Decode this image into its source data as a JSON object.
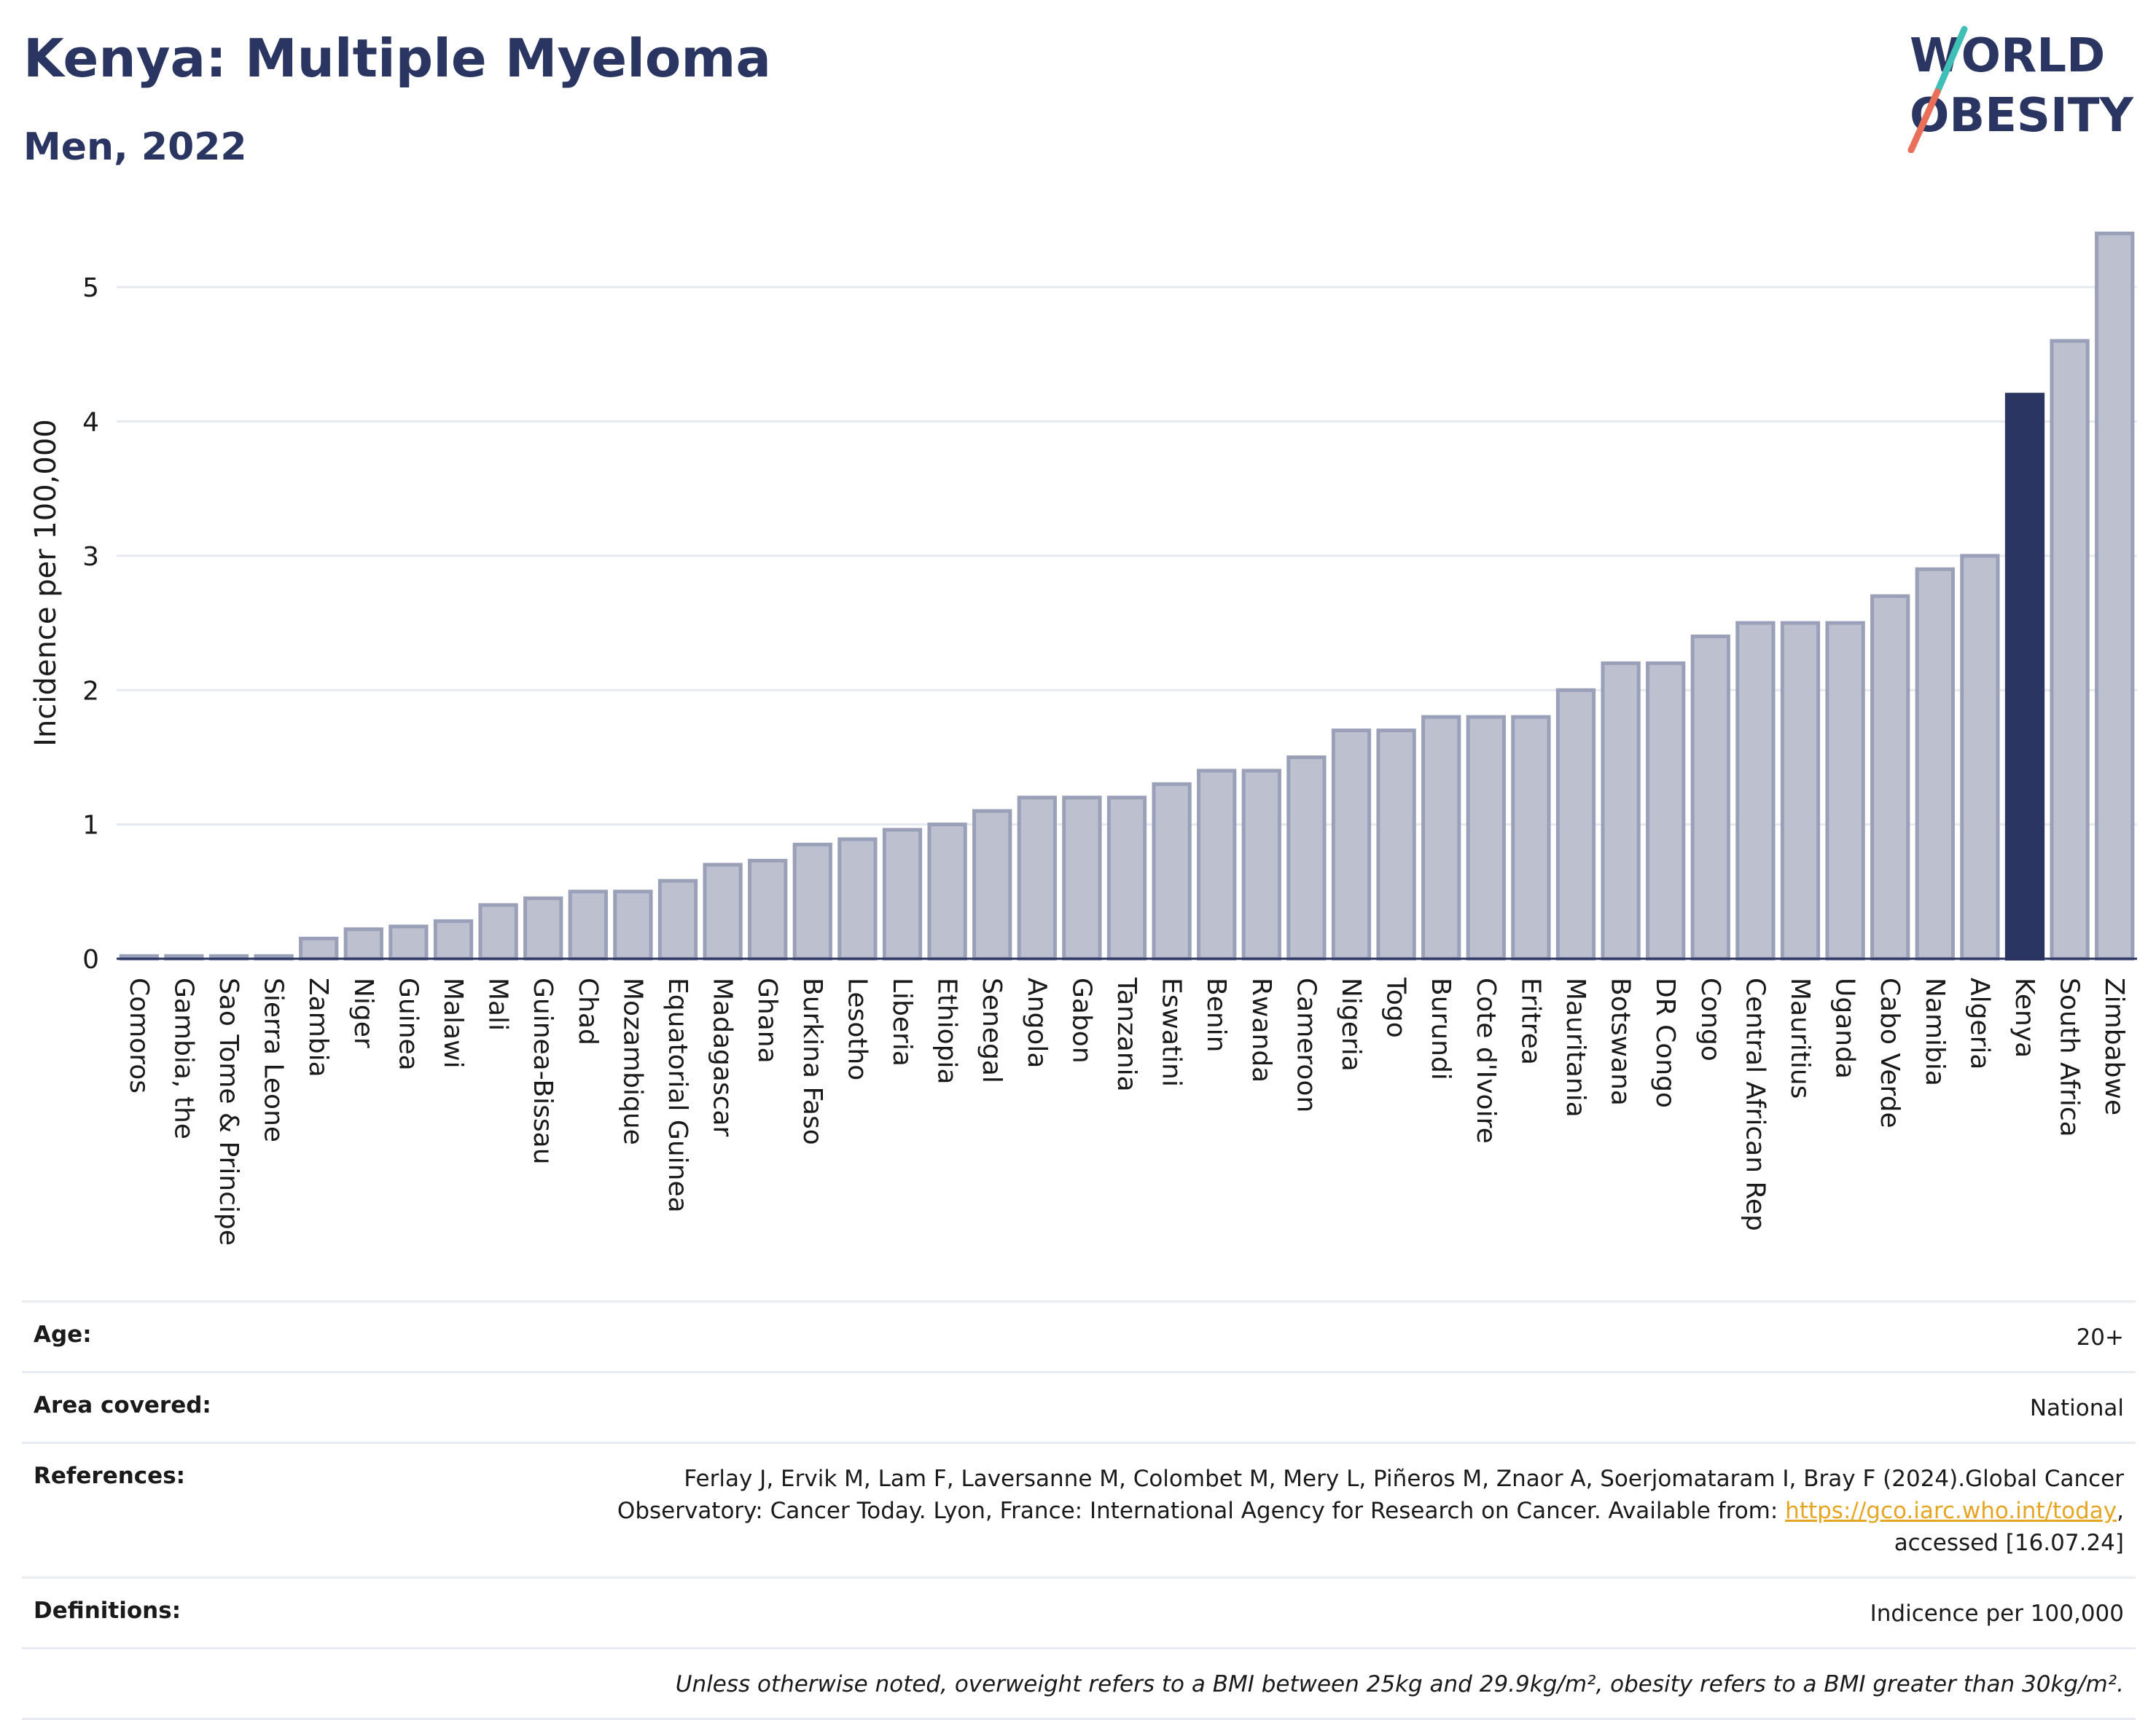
{
  "header": {
    "title": "Kenya: Multiple Myeloma",
    "subtitle": "Men, 2022",
    "logo_line1": "WORLD",
    "logo_line2": "OBESITY"
  },
  "colors": {
    "bar": "#bcc0cf",
    "bar_stroke": "#9aa0b8",
    "highlight": "#2a3561",
    "grid": "#e6e9f0",
    "accent_teal": "#3fbfb6",
    "accent_coral": "#e8705a"
  },
  "chart_data": {
    "type": "bar",
    "ylabel": "Incidence per 100,000",
    "ylim": [
      0,
      5.5
    ],
    "yticks": [
      0,
      1,
      2,
      3,
      4,
      5
    ],
    "highlight": "Kenya",
    "categories": [
      "Comoros",
      "Gambia, the",
      "Sao Tome & Principe",
      "Sierra Leone",
      "Zambia",
      "Niger",
      "Guinea",
      "Malawi",
      "Mali",
      "Guinea-Bissau",
      "Chad",
      "Mozambique",
      "Equatorial Guinea",
      "Madagascar",
      "Ghana",
      "Burkina Faso",
      "Lesotho",
      "Liberia",
      "Ethiopia",
      "Senegal",
      "Angola",
      "Gabon",
      "Tanzania",
      "Eswatini",
      "Benin",
      "Rwanda",
      "Cameroon",
      "Nigeria",
      "Togo",
      "Burundi",
      "Cote d'Ivoire",
      "Eritrea",
      "Mauritania",
      "Botswana",
      "DR Congo",
      "Congo",
      "Central African Rep",
      "Mauritius",
      "Uganda",
      "Cabo Verde",
      "Namibia",
      "Algeria",
      "Kenya",
      "South Africa",
      "Zimbabwe"
    ],
    "values": [
      0.02,
      0.02,
      0.02,
      0.02,
      0.15,
      0.22,
      0.24,
      0.28,
      0.4,
      0.45,
      0.5,
      0.5,
      0.58,
      0.7,
      0.73,
      0.85,
      0.89,
      0.96,
      1.0,
      1.1,
      1.2,
      1.2,
      1.2,
      1.3,
      1.4,
      1.4,
      1.5,
      1.7,
      1.7,
      1.8,
      1.8,
      1.8,
      2.0,
      2.2,
      2.2,
      2.4,
      2.5,
      2.5,
      2.5,
      2.7,
      2.9,
      3.0,
      4.2,
      4.6,
      5.4
    ]
  },
  "info": {
    "age_label": "Age:",
    "age_value": "20+",
    "area_label": "Area covered:",
    "area_value": "National",
    "references_label": "References:",
    "references_text_1": "Ferlay J, Ervik M, Lam F, Laversanne M, Colombet M, Mery L, Piñeros M, Znaor A, Soerjomataram I, Bray F (2024).Global Cancer",
    "references_text_2": "Observatory: Cancer Today. Lyon, France: International Agency for Research on Cancer. Available from: ",
    "references_link": "https://gco.iarc.who.int/today",
    "references_text_3": ",",
    "references_text_4": "accessed [16.07.24]",
    "definitions_label": "Definitions:",
    "definitions_value": "Indicence per 100,000",
    "note": "Unless otherwise noted, overweight refers to a BMI between 25kg and 29.9kg/m², obesity refers to a BMI greater than 30kg/m²."
  }
}
